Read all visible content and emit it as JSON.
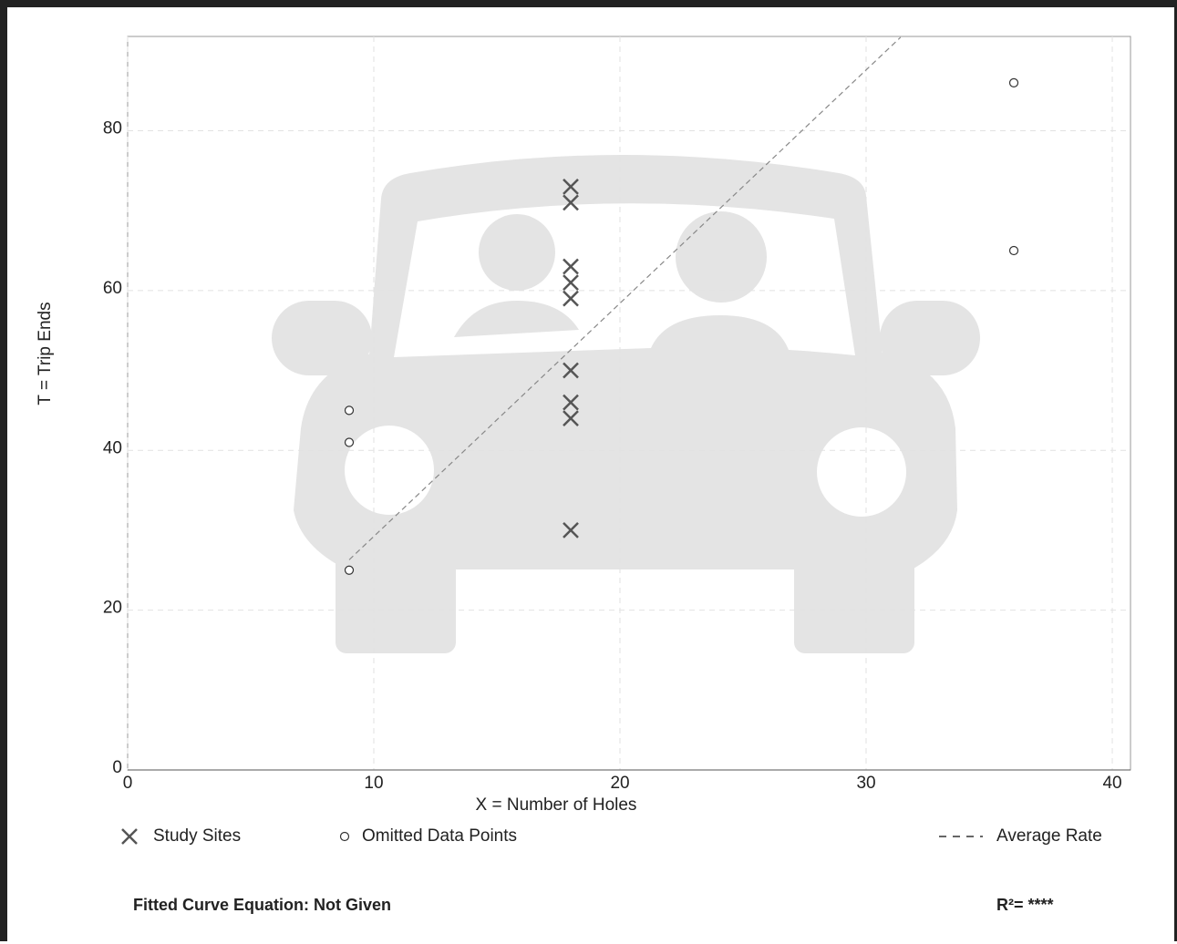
{
  "chart_data": {
    "type": "scatter",
    "x_label": "X = Number of Holes",
    "y_label": "T = Trip Ends",
    "xlim": [
      0,
      40.74
    ],
    "ylim": [
      0,
      91.8
    ],
    "xticks": [
      0,
      10,
      20,
      30,
      40
    ],
    "yticks": [
      0,
      20,
      40,
      60,
      80
    ],
    "grid": true,
    "series": [
      {
        "name": "Study Sites",
        "marker": "x",
        "color": "#555555",
        "x": [
          18,
          18,
          18,
          18,
          18,
          18,
          18,
          18,
          18
        ],
        "values": [
          73,
          71,
          63,
          61,
          59,
          50,
          46,
          44,
          30
        ]
      },
      {
        "name": "Omitted Data Points",
        "marker": "circle",
        "color": "#333333",
        "x": [
          9,
          9,
          9,
          36,
          36
        ],
        "values": [
          45,
          41,
          25,
          86,
          65
        ]
      },
      {
        "name": "Average Rate",
        "marker": "dashed-line",
        "color": "#888888",
        "x": [
          9,
          31.4
        ],
        "values": [
          26.3,
          91.7
        ]
      }
    ],
    "footer": {
      "equation": "Fitted Curve Equation: Not Given",
      "r2": "R²= ****"
    }
  }
}
